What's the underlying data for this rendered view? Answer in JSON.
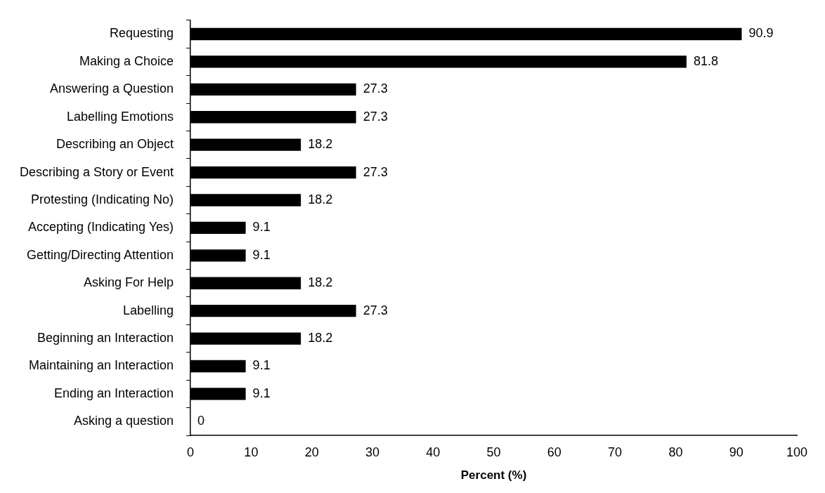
{
  "chart_data": {
    "type": "bar",
    "orientation": "horizontal",
    "xlabel": "Percent (%)",
    "categories": [
      "Requesting",
      "Making a Choice",
      "Answering a Question",
      "Labelling Emotions",
      "Describing an Object",
      "Describing a Story or Event",
      "Protesting (Indicating No)",
      "Accepting (Indicating Yes)",
      "Getting/Directing Attention",
      "Asking For Help",
      "Labelling",
      "Beginning an Interaction",
      "Maintaining an Interaction",
      "Ending an Interaction",
      "Asking a question"
    ],
    "values": [
      90.9,
      81.8,
      27.3,
      27.3,
      18.2,
      27.3,
      18.2,
      9.1,
      9.1,
      18.2,
      27.3,
      18.2,
      9.1,
      9.1,
      0
    ],
    "color": "#000000",
    "xlim": [
      0,
      100
    ],
    "xticks": [
      0,
      10,
      20,
      30,
      40,
      50,
      60,
      70,
      80,
      90,
      100
    ],
    "grid": false,
    "legend": false,
    "data_labels": true
  }
}
